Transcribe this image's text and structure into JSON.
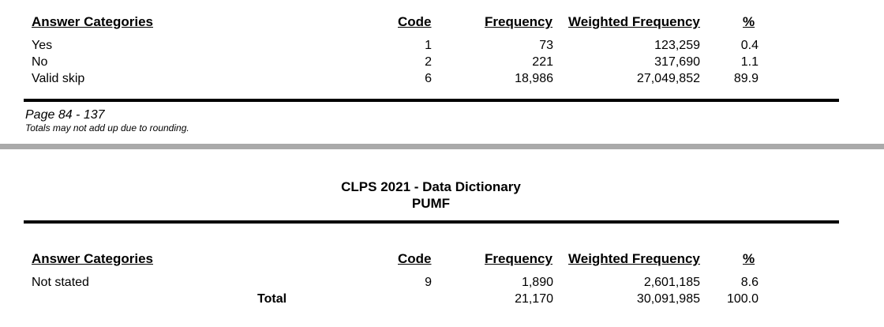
{
  "headers": {
    "categories": "Answer Categories",
    "code": "Code",
    "frequency": "Frequency",
    "weighted": "Weighted Frequency",
    "percent": "%"
  },
  "table1": {
    "rows": [
      {
        "label": "Yes",
        "code": "1",
        "frequency": "73",
        "weighted": "123,259",
        "percent": "0.4"
      },
      {
        "label": "No",
        "code": "2",
        "frequency": "221",
        "weighted": "317,690",
        "percent": "1.1"
      },
      {
        "label": "Valid skip",
        "code": "6",
        "frequency": "18,986",
        "weighted": "27,049,852",
        "percent": "89.9"
      }
    ]
  },
  "footer": {
    "page": "Page 84 - 137",
    "note": "Totals may not add up due to rounding."
  },
  "doc_header": {
    "title": "CLPS 2021 - Data Dictionary",
    "subtitle": "PUMF"
  },
  "table2": {
    "rows": [
      {
        "label": "Not stated",
        "code": "9",
        "frequency": "1,890",
        "weighted": "2,601,185",
        "percent": "8.6"
      }
    ],
    "total": {
      "label": "Total",
      "frequency": "21,170",
      "weighted": "30,091,985",
      "percent": "100.0"
    }
  }
}
